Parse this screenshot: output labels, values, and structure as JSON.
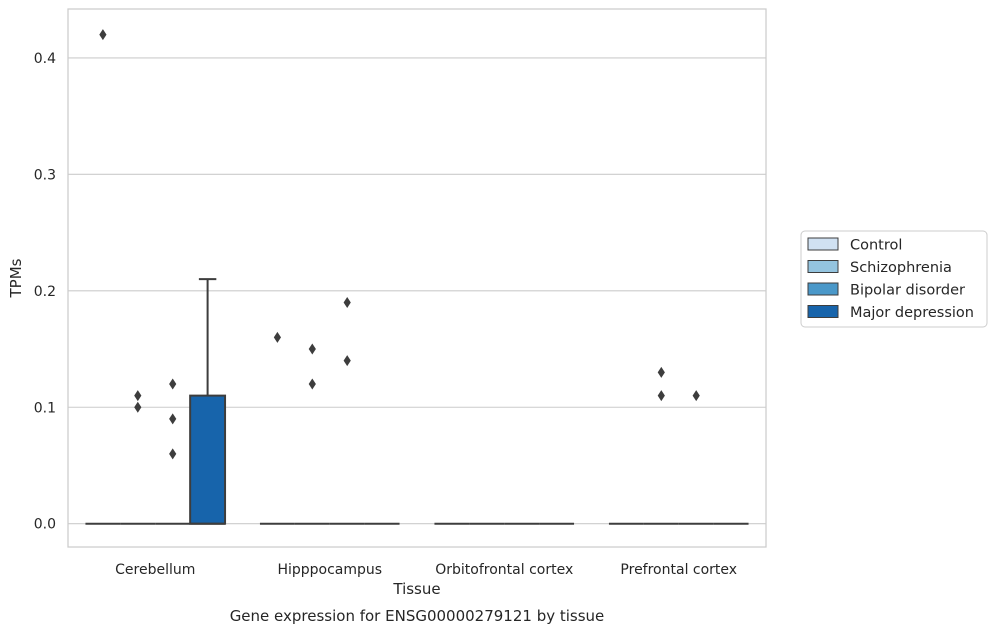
{
  "chart_data": {
    "type": "box",
    "title": "",
    "xlabel": "Tissue",
    "ylabel": "TPMs",
    "caption": "Gene expression for ENSG00000279121 by tissue",
    "ylim": [
      -0.02,
      0.442
    ],
    "yticks": [
      0.0,
      0.1,
      0.2,
      0.3,
      0.4
    ],
    "ytick_labels": [
      "0.0",
      "0.1",
      "0.2",
      "0.3",
      "0.4"
    ],
    "grid": "horizontal",
    "legend_position": "right",
    "categories": [
      "Cerebellum",
      "Hipppocampus",
      "Orbitofrontal cortex",
      "Prefrontal cortex"
    ],
    "series": [
      {
        "name": "Control",
        "color": "#d0e1f2",
        "boxes": [
          {
            "q1": 0,
            "median": 0,
            "q3": 0,
            "whisker_low": 0,
            "whisker_high": 0,
            "outliers": [
              0.42
            ]
          },
          {
            "q1": 0,
            "median": 0,
            "q3": 0,
            "whisker_low": 0,
            "whisker_high": 0,
            "outliers": [
              0.16
            ]
          },
          {
            "q1": 0,
            "median": 0,
            "q3": 0,
            "whisker_low": 0,
            "whisker_high": 0,
            "outliers": []
          },
          {
            "q1": 0,
            "median": 0,
            "q3": 0,
            "whisker_low": 0,
            "whisker_high": 0,
            "outliers": []
          }
        ]
      },
      {
        "name": "Schizophrenia",
        "color": "#94c4df",
        "boxes": [
          {
            "q1": 0,
            "median": 0,
            "q3": 0,
            "whisker_low": 0,
            "whisker_high": 0,
            "outliers": [
              0.11,
              0.1
            ]
          },
          {
            "q1": 0,
            "median": 0,
            "q3": 0,
            "whisker_low": 0,
            "whisker_high": 0,
            "outliers": [
              0.15,
              0.12
            ]
          },
          {
            "q1": 0,
            "median": 0,
            "q3": 0,
            "whisker_low": 0,
            "whisker_high": 0,
            "outliers": []
          },
          {
            "q1": 0,
            "median": 0,
            "q3": 0,
            "whisker_low": 0,
            "whisker_high": 0,
            "outliers": [
              0.13,
              0.11
            ]
          }
        ]
      },
      {
        "name": "Bipolar disorder",
        "color": "#4a98c9",
        "boxes": [
          {
            "q1": 0,
            "median": 0,
            "q3": 0,
            "whisker_low": 0,
            "whisker_high": 0,
            "outliers": [
              0.12,
              0.09,
              0.06
            ]
          },
          {
            "q1": 0,
            "median": 0,
            "q3": 0,
            "whisker_low": 0,
            "whisker_high": 0,
            "outliers": [
              0.19,
              0.14
            ]
          },
          {
            "q1": 0,
            "median": 0,
            "q3": 0,
            "whisker_low": 0,
            "whisker_high": 0,
            "outliers": []
          },
          {
            "q1": 0,
            "median": 0,
            "q3": 0,
            "whisker_low": 0,
            "whisker_high": 0,
            "outliers": [
              0.11
            ]
          }
        ]
      },
      {
        "name": "Major depression",
        "color": "#1764ab",
        "boxes": [
          {
            "q1": 0,
            "median": 0,
            "q3": 0.11,
            "whisker_low": 0,
            "whisker_high": 0.21,
            "outliers": []
          },
          {
            "q1": 0,
            "median": 0,
            "q3": 0,
            "whisker_low": 0,
            "whisker_high": 0,
            "outliers": []
          },
          {
            "q1": 0,
            "median": 0,
            "q3": 0,
            "whisker_low": 0,
            "whisker_high": 0,
            "outliers": []
          },
          {
            "q1": 0,
            "median": 0,
            "q3": 0,
            "whisker_low": 0,
            "whisker_high": 0,
            "outliers": []
          }
        ]
      }
    ]
  }
}
